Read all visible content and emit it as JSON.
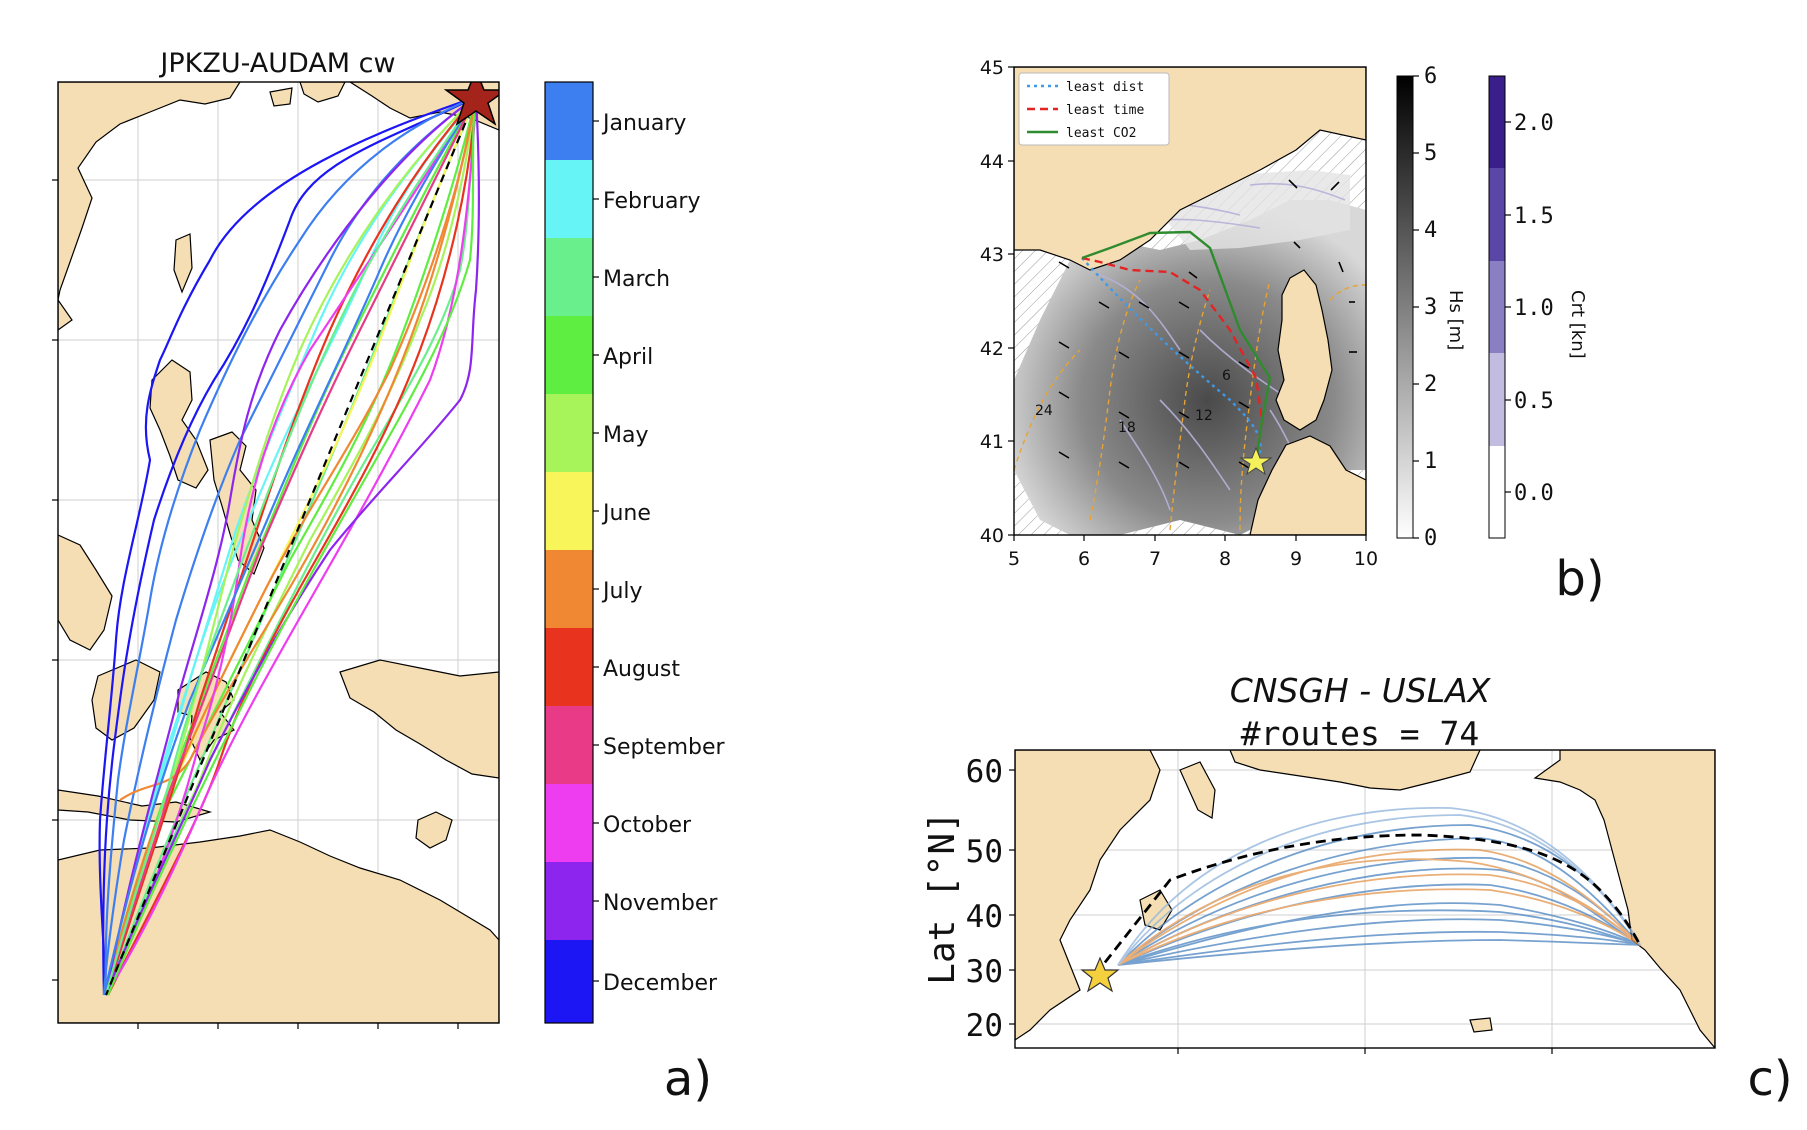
{
  "panel_a": {
    "title": "JPKZU-AUDAM cw",
    "label": "a)",
    "months": [
      {
        "name": "January",
        "color": "#3d7ff0"
      },
      {
        "name": "February",
        "color": "#67f4f6"
      },
      {
        "name": "March",
        "color": "#69ef8c"
      },
      {
        "name": "April",
        "color": "#5eed41"
      },
      {
        "name": "May",
        "color": "#a6f35a"
      },
      {
        "name": "June",
        "color": "#f8f55b"
      },
      {
        "name": "July",
        "color": "#f08833"
      },
      {
        "name": "August",
        "color": "#e8341f"
      },
      {
        "name": "September",
        "color": "#e83a86"
      },
      {
        "name": "October",
        "color": "#ee3df0"
      },
      {
        "name": "November",
        "color": "#8d25ef"
      },
      {
        "name": "December",
        "color": "#1c16f5"
      }
    ]
  },
  "panel_b": {
    "label": "b)",
    "legend": [
      {
        "name": "least dist",
        "color": "#3e9ae8"
      },
      {
        "name": "least time",
        "color": "#e32424"
      },
      {
        "name": "least CO2",
        "color": "#2e8b2e"
      }
    ],
    "x_ticks": [
      "5",
      "6",
      "7",
      "8",
      "9",
      "10"
    ],
    "y_ticks": [
      "40",
      "41",
      "42",
      "43",
      "44",
      "45"
    ],
    "hs_label": "Hs [m]",
    "hs_ticks": [
      "0",
      "1",
      "2",
      "3",
      "4",
      "5",
      "6"
    ],
    "crt_label": "Crt [kn]",
    "crt_ticks": [
      "0.0",
      "0.5",
      "1.0",
      "1.5",
      "2.0"
    ],
    "contour_labels": [
      "24",
      "18",
      "12",
      "6"
    ]
  },
  "panel_c": {
    "label": "c)",
    "title": "CNSGH - USLAX",
    "subtitle": "#routes = 74",
    "ylabel": "Lat [°N]",
    "y_ticks": [
      "60",
      "50",
      "40",
      "30",
      "20"
    ]
  },
  "colors": {
    "land": "#f5deb3",
    "route_blue": "#4a83c0",
    "route_orange": "#e3934a",
    "star_a": "#a4231b",
    "star_bc": "#f4d03f"
  }
}
